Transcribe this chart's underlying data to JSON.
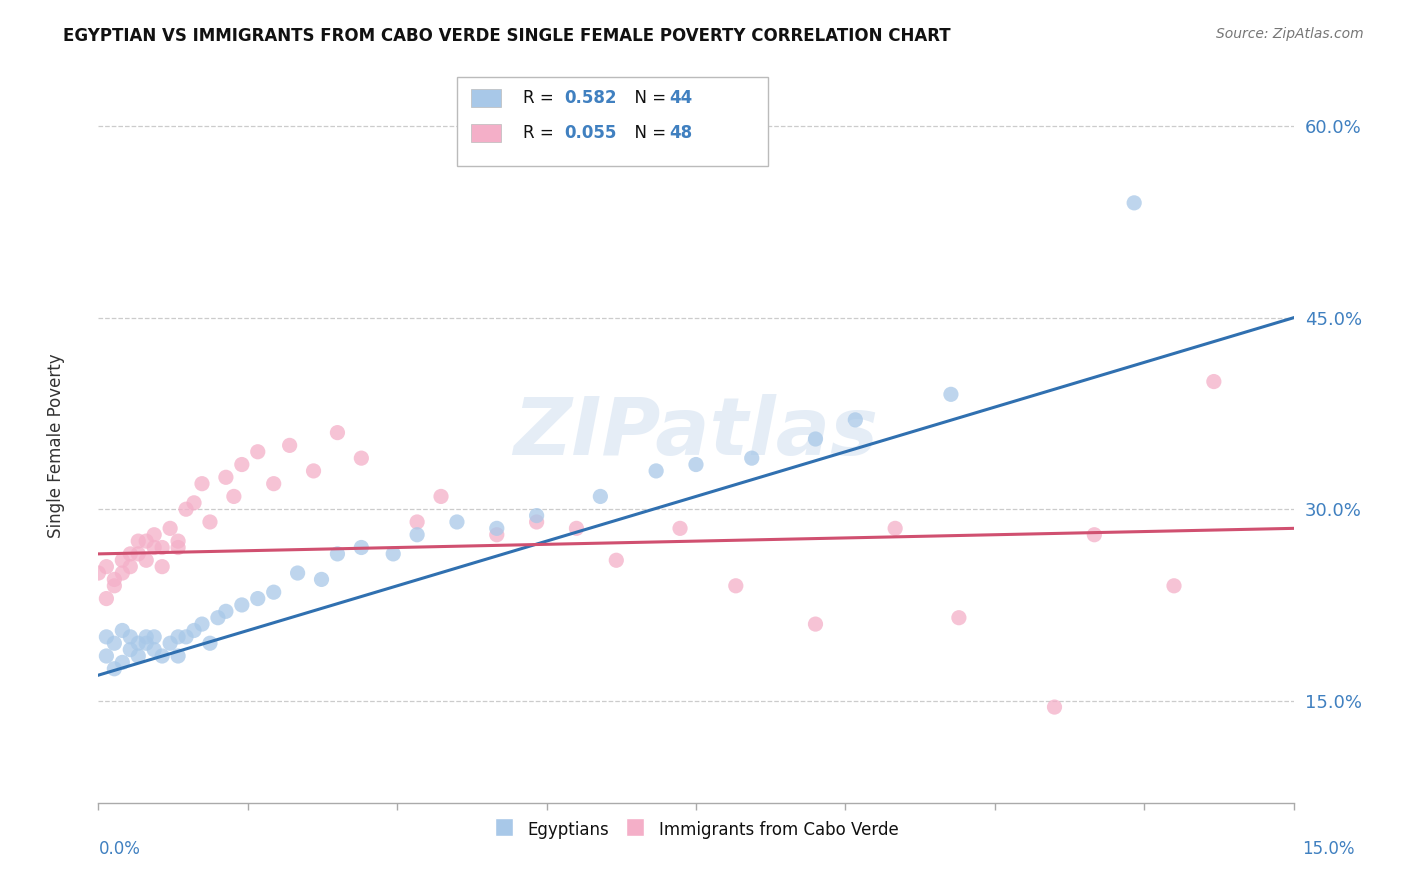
{
  "title": "EGYPTIAN VS IMMIGRANTS FROM CABO VERDE SINGLE FEMALE POVERTY CORRELATION CHART",
  "source": "Source: ZipAtlas.com",
  "ylabel": "Single Female Poverty",
  "xlim": [
    0.0,
    0.15
  ],
  "ylim": [
    0.07,
    0.65
  ],
  "y_ticks": [
    0.15,
    0.3,
    0.45,
    0.6
  ],
  "y_tick_labels": [
    "15.0%",
    "30.0%",
    "45.0%",
    "60.0%"
  ],
  "blue_color": "#a8c8e8",
  "pink_color": "#f4afc8",
  "blue_line_color": "#3070b0",
  "pink_line_color": "#d05070",
  "eg_x": [
    0.001,
    0.001,
    0.002,
    0.002,
    0.003,
    0.003,
    0.004,
    0.004,
    0.005,
    0.005,
    0.006,
    0.006,
    0.007,
    0.007,
    0.008,
    0.009,
    0.01,
    0.01,
    0.011,
    0.012,
    0.013,
    0.014,
    0.015,
    0.016,
    0.018,
    0.02,
    0.022,
    0.025,
    0.028,
    0.03,
    0.033,
    0.037,
    0.04,
    0.045,
    0.05,
    0.055,
    0.063,
    0.07,
    0.075,
    0.082,
    0.09,
    0.095,
    0.107,
    0.13
  ],
  "eg_y": [
    0.2,
    0.185,
    0.195,
    0.175,
    0.205,
    0.18,
    0.19,
    0.2,
    0.195,
    0.185,
    0.2,
    0.195,
    0.19,
    0.2,
    0.185,
    0.195,
    0.2,
    0.185,
    0.2,
    0.205,
    0.21,
    0.195,
    0.215,
    0.22,
    0.225,
    0.23,
    0.235,
    0.25,
    0.245,
    0.265,
    0.27,
    0.265,
    0.28,
    0.29,
    0.285,
    0.295,
    0.31,
    0.33,
    0.335,
    0.34,
    0.355,
    0.37,
    0.39,
    0.54
  ],
  "cv_x": [
    0.0,
    0.001,
    0.001,
    0.002,
    0.002,
    0.003,
    0.003,
    0.004,
    0.004,
    0.005,
    0.005,
    0.006,
    0.006,
    0.007,
    0.007,
    0.008,
    0.008,
    0.009,
    0.01,
    0.01,
    0.011,
    0.012,
    0.013,
    0.014,
    0.016,
    0.017,
    0.018,
    0.02,
    0.022,
    0.024,
    0.027,
    0.03,
    0.033,
    0.04,
    0.043,
    0.05,
    0.055,
    0.06,
    0.065,
    0.073,
    0.08,
    0.09,
    0.1,
    0.108,
    0.12,
    0.125,
    0.135,
    0.14
  ],
  "cv_y": [
    0.25,
    0.23,
    0.255,
    0.24,
    0.245,
    0.26,
    0.25,
    0.265,
    0.255,
    0.275,
    0.265,
    0.275,
    0.26,
    0.27,
    0.28,
    0.27,
    0.255,
    0.285,
    0.27,
    0.275,
    0.3,
    0.305,
    0.32,
    0.29,
    0.325,
    0.31,
    0.335,
    0.345,
    0.32,
    0.35,
    0.33,
    0.36,
    0.34,
    0.29,
    0.31,
    0.28,
    0.29,
    0.285,
    0.26,
    0.285,
    0.24,
    0.21,
    0.285,
    0.215,
    0.145,
    0.28,
    0.24,
    0.4
  ],
  "watermark": "ZIPatlas"
}
